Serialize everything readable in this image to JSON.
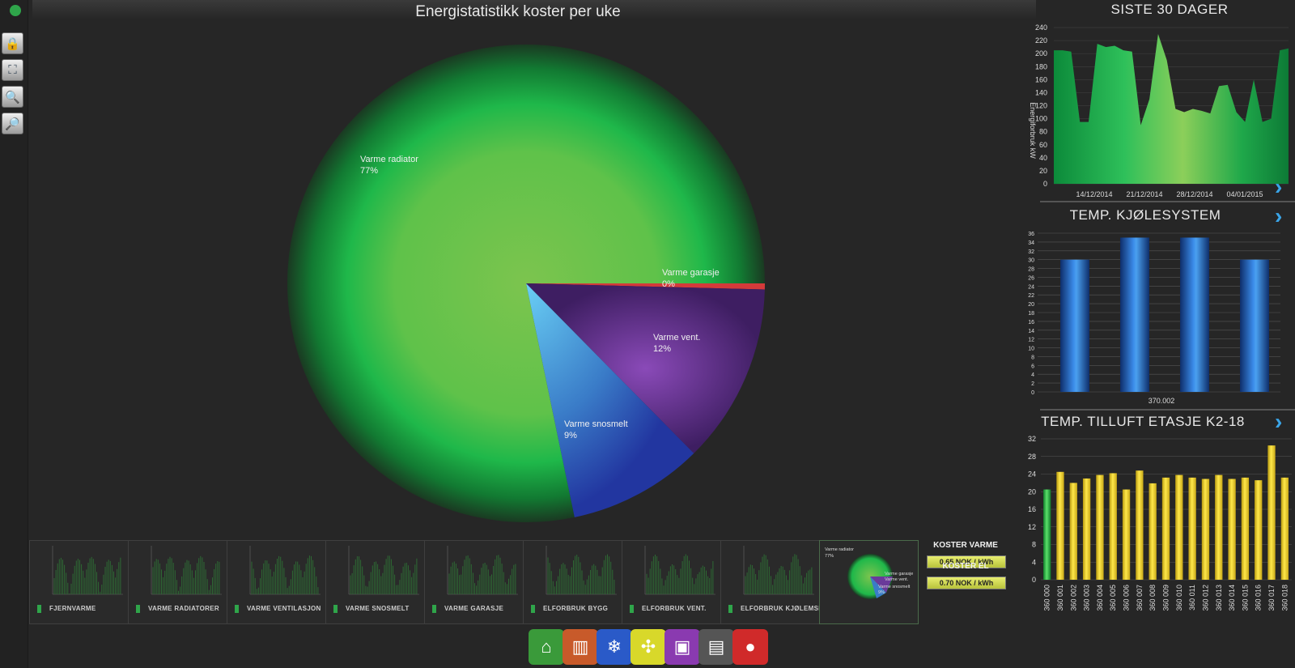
{
  "title": "Energistatistikk koster per uke",
  "toolbar": [
    {
      "name": "lock-icon",
      "glyph": "🔒"
    },
    {
      "name": "fit-screen-icon",
      "glyph": "⛶"
    },
    {
      "name": "zoom-out-icon",
      "glyph": "🔍"
    },
    {
      "name": "zoom-in-icon",
      "glyph": "🔎"
    }
  ],
  "pie": {
    "slices": [
      {
        "label": "Varme radiator",
        "value": 77,
        "pct": "77%",
        "color": "#6abf4b"
      },
      {
        "label": "Varme garasje",
        "value": 0.4,
        "pct": "0%",
        "color": "#d43a3a"
      },
      {
        "label": "Varme vent.",
        "value": 12,
        "pct": "12%",
        "color": "#6a3a9a"
      },
      {
        "label": "Varme snosmelt",
        "value": 9,
        "pct": "9%",
        "color": "#3a7cc8"
      }
    ]
  },
  "panel1": {
    "title": "SISTE 30 DAGER",
    "ylabel": "Energiforbruk kW",
    "yticks": [
      "240",
      "220",
      "200",
      "180",
      "160",
      "140",
      "120",
      "100",
      "80",
      "60",
      "40",
      "20",
      "0"
    ],
    "xticks": [
      "14/12/2014",
      "21/12/2014",
      "28/12/2014",
      "04/01/2015"
    ],
    "chart_data": {
      "type": "area",
      "ylim": [
        0,
        240
      ],
      "values": [
        205,
        205,
        203,
        95,
        95,
        215,
        210,
        212,
        205,
        203,
        90,
        130,
        230,
        190,
        115,
        110,
        115,
        112,
        108,
        150,
        152,
        110,
        95,
        160,
        95,
        100,
        205,
        208
      ]
    }
  },
  "panel2": {
    "title": "TEMP.  KJØLESYSTEM",
    "yticks": [
      "36",
      "34",
      "32",
      "30",
      "28",
      "26",
      "24",
      "22",
      "20",
      "18",
      "16",
      "14",
      "12",
      "10",
      "8",
      "6",
      "4",
      "2",
      "0"
    ],
    "xlabel": "370.002",
    "chart_data": {
      "type": "bar",
      "ylim": [
        0,
        36
      ],
      "values": [
        30,
        35,
        35,
        30
      ]
    }
  },
  "panel3": {
    "title": "TEMP. TILLUFT ETASJE K2-18",
    "yticks": [
      "32",
      "28",
      "24",
      "20",
      "16",
      "12",
      "8",
      "4",
      "0"
    ],
    "chart_data": {
      "type": "bar",
      "ylim": [
        0,
        32
      ],
      "categories": [
        "360 000",
        "360 001",
        "360 002",
        "360 003",
        "360 004",
        "360 005",
        "360 006",
        "360 007",
        "360 008",
        "360 009",
        "360 010",
        "360 011",
        "360 012",
        "360 013",
        "360 014",
        "360 015",
        "360 016",
        "360 017",
        "360 018"
      ],
      "values": [
        20.5,
        24.5,
        22,
        23,
        23.8,
        24.2,
        20.5,
        24.8,
        21.9,
        23.2,
        23.8,
        23.2,
        22.9,
        23.8,
        22.9,
        23.2,
        22.6,
        30.5,
        23.2
      ]
    }
  },
  "mini_tiles": [
    {
      "label": "FJERNVARME"
    },
    {
      "label": "VARME RADIATORER"
    },
    {
      "label": "VARME VENTILASJON"
    },
    {
      "label": "VARME SNOSMELT"
    },
    {
      "label": "VARME GARASJE"
    },
    {
      "label": "ELFORBRUK BYGG"
    },
    {
      "label": "ELFORBRUK VENT."
    },
    {
      "label": "ELFORBRUK KJØLEMSK."
    }
  ],
  "mini_pie": {
    "labels": [
      "Varme radiator",
      "77%",
      "Varme garasje",
      "Varme vent.",
      "Varme snosmelt",
      "9%"
    ]
  },
  "costs": {
    "heat_label": "KOSTER VARME",
    "heat_value": "0.65 NOK / kWh",
    "el_label": "KOSTER EL",
    "el_value": "0.70 NOK / kWh"
  },
  "puzzle": [
    {
      "name": "house-icon",
      "color": "#3a9a3a",
      "glyph": "⌂"
    },
    {
      "name": "radiator-icon",
      "color": "#c85a2a",
      "glyph": "▥"
    },
    {
      "name": "snowflake-icon",
      "color": "#2a5ac8",
      "glyph": "❄"
    },
    {
      "name": "fan-icon",
      "color": "#d8d82a",
      "glyph": "✣"
    },
    {
      "name": "garage-icon",
      "color": "#8a3ab0",
      "glyph": "▣"
    },
    {
      "name": "building-icon",
      "color": "#555555",
      "glyph": "▤"
    },
    {
      "name": "alarm-icon",
      "color": "#d02a2a",
      "glyph": "●"
    }
  ]
}
